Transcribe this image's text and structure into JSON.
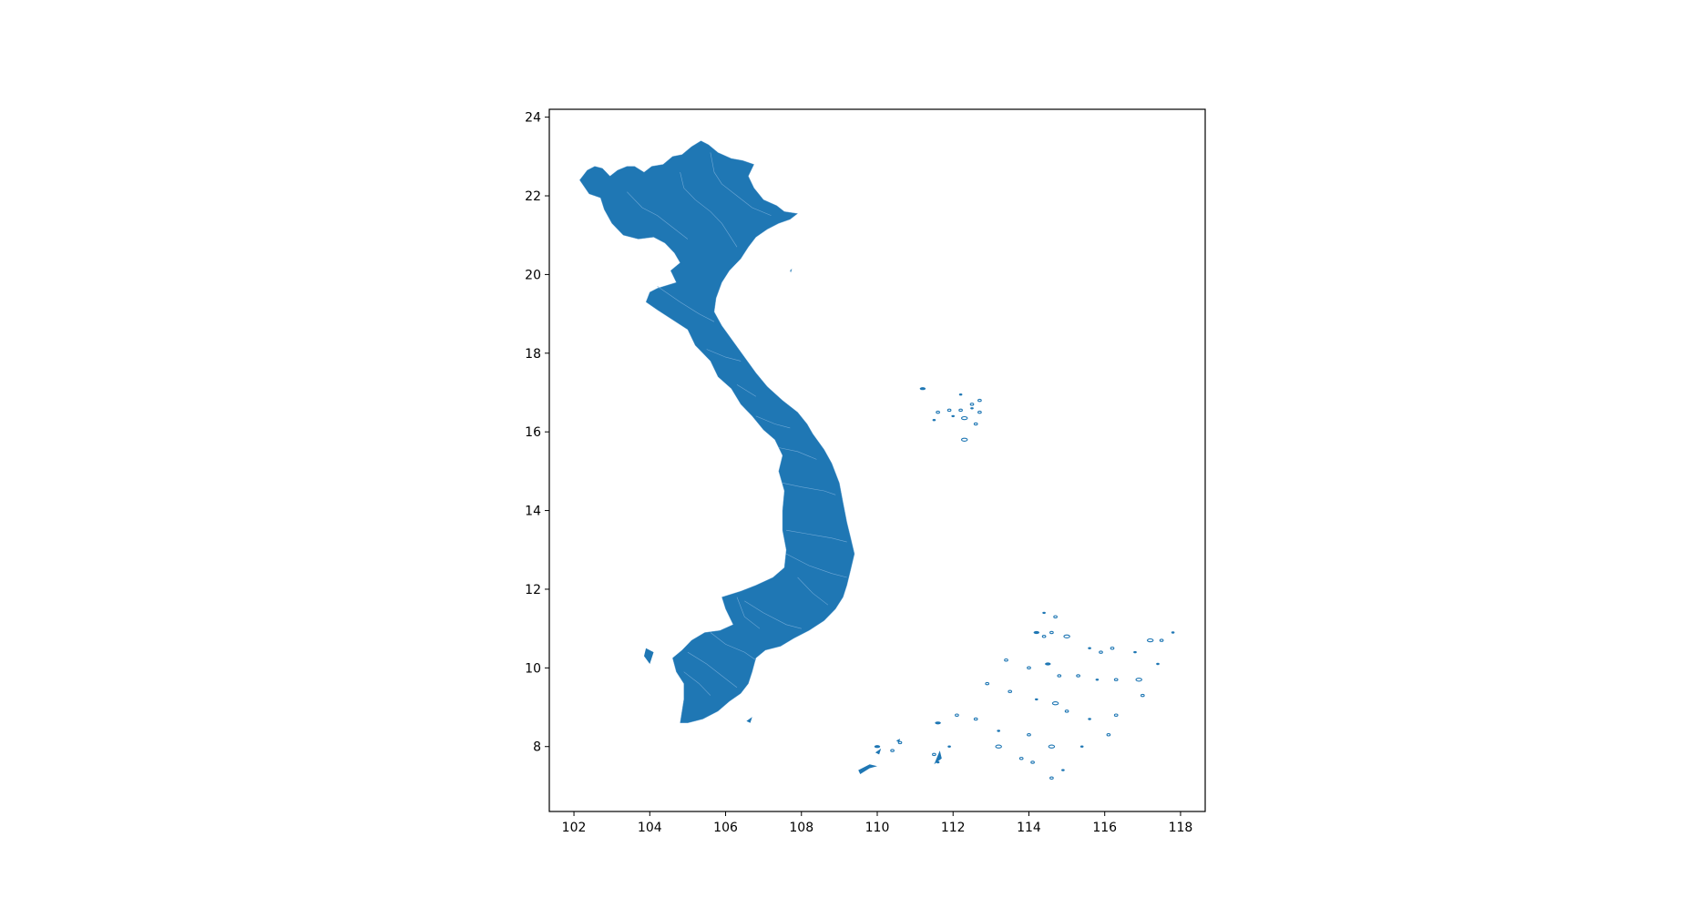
{
  "chart_data": {
    "type": "map",
    "title": "",
    "xlabel": "",
    "ylabel": "",
    "xlim": [
      101.35,
      118.65
    ],
    "ylim": [
      6.35,
      24.2
    ],
    "x_ticks": [
      102,
      104,
      106,
      108,
      110,
      112,
      114,
      116,
      118
    ],
    "y_ticks": [
      8,
      10,
      12,
      14,
      16,
      18,
      20,
      22,
      24
    ],
    "grid": false,
    "legend": "none",
    "colors": {
      "fill": "#1f77b4",
      "boundary": "#6fa8d6",
      "axes": "#000000",
      "background": "#ffffff"
    },
    "features": [
      {
        "name": "mainland",
        "kind": "region",
        "coords": [
          [
            102.15,
            22.4
          ],
          [
            102.35,
            22.65
          ],
          [
            102.55,
            22.75
          ],
          [
            102.75,
            22.7
          ],
          [
            102.95,
            22.5
          ],
          [
            103.15,
            22.65
          ],
          [
            103.4,
            22.75
          ],
          [
            103.6,
            22.75
          ],
          [
            103.85,
            22.6
          ],
          [
            104.05,
            22.75
          ],
          [
            104.35,
            22.8
          ],
          [
            104.6,
            23.0
          ],
          [
            104.85,
            23.05
          ],
          [
            105.1,
            23.25
          ],
          [
            105.35,
            23.4
          ],
          [
            105.55,
            23.3
          ],
          [
            105.8,
            23.1
          ],
          [
            106.15,
            22.95
          ],
          [
            106.45,
            22.9
          ],
          [
            106.75,
            22.8
          ],
          [
            106.6,
            22.5
          ],
          [
            106.75,
            22.2
          ],
          [
            107.0,
            21.9
          ],
          [
            107.35,
            21.75
          ],
          [
            107.55,
            21.6
          ],
          [
            107.9,
            21.55
          ],
          [
            107.7,
            21.4
          ],
          [
            107.4,
            21.3
          ],
          [
            107.1,
            21.15
          ],
          [
            106.8,
            20.95
          ],
          [
            106.6,
            20.7
          ],
          [
            106.4,
            20.4
          ],
          [
            106.1,
            20.1
          ],
          [
            105.9,
            19.8
          ],
          [
            105.75,
            19.4
          ],
          [
            105.7,
            19.05
          ],
          [
            105.9,
            18.7
          ],
          [
            106.2,
            18.3
          ],
          [
            106.5,
            17.9
          ],
          [
            106.8,
            17.5
          ],
          [
            107.1,
            17.15
          ],
          [
            107.5,
            16.8
          ],
          [
            107.9,
            16.5
          ],
          [
            108.15,
            16.2
          ],
          [
            108.3,
            15.95
          ],
          [
            108.6,
            15.55
          ],
          [
            108.8,
            15.2
          ],
          [
            109.0,
            14.7
          ],
          [
            109.1,
            14.2
          ],
          [
            109.2,
            13.7
          ],
          [
            109.3,
            13.3
          ],
          [
            109.4,
            12.9
          ],
          [
            109.3,
            12.5
          ],
          [
            109.2,
            12.1
          ],
          [
            109.1,
            11.8
          ],
          [
            108.9,
            11.5
          ],
          [
            108.6,
            11.2
          ],
          [
            108.2,
            10.95
          ],
          [
            107.8,
            10.75
          ],
          [
            107.45,
            10.55
          ],
          [
            107.05,
            10.45
          ],
          [
            106.8,
            10.25
          ],
          [
            106.7,
            9.9
          ],
          [
            106.6,
            9.6
          ],
          [
            106.4,
            9.35
          ],
          [
            106.1,
            9.15
          ],
          [
            105.8,
            8.9
          ],
          [
            105.4,
            8.7
          ],
          [
            105.0,
            8.6
          ],
          [
            104.8,
            8.6
          ],
          [
            104.9,
            9.2
          ],
          [
            104.9,
            9.6
          ],
          [
            104.7,
            9.9
          ],
          [
            104.6,
            10.25
          ],
          [
            104.85,
            10.45
          ],
          [
            105.1,
            10.7
          ],
          [
            105.45,
            10.9
          ],
          [
            105.85,
            10.95
          ],
          [
            106.2,
            11.1
          ],
          [
            106.0,
            11.5
          ],
          [
            105.9,
            11.8
          ],
          [
            106.4,
            11.95
          ],
          [
            106.8,
            12.1
          ],
          [
            107.25,
            12.3
          ],
          [
            107.55,
            12.55
          ],
          [
            107.6,
            13.0
          ],
          [
            107.5,
            13.5
          ],
          [
            107.5,
            14.0
          ],
          [
            107.55,
            14.5
          ],
          [
            107.4,
            15.0
          ],
          [
            107.5,
            15.4
          ],
          [
            107.3,
            15.8
          ],
          [
            107.0,
            16.05
          ],
          [
            106.7,
            16.4
          ],
          [
            106.4,
            16.7
          ],
          [
            106.15,
            17.1
          ],
          [
            105.8,
            17.4
          ],
          [
            105.6,
            17.8
          ],
          [
            105.2,
            18.2
          ],
          [
            105.0,
            18.6
          ],
          [
            104.6,
            18.85
          ],
          [
            104.2,
            19.1
          ],
          [
            103.9,
            19.3
          ],
          [
            104.0,
            19.55
          ],
          [
            104.2,
            19.65
          ],
          [
            104.7,
            19.8
          ],
          [
            104.55,
            20.1
          ],
          [
            104.8,
            20.3
          ],
          [
            104.65,
            20.55
          ],
          [
            104.4,
            20.8
          ],
          [
            104.1,
            20.95
          ],
          [
            103.7,
            20.9
          ],
          [
            103.3,
            21.0
          ],
          [
            103.0,
            21.3
          ],
          [
            102.8,
            21.65
          ],
          [
            102.7,
            21.95
          ],
          [
            102.4,
            22.05
          ],
          [
            102.15,
            22.4
          ]
        ]
      },
      {
        "name": "phu-quoc",
        "kind": "island",
        "coords": [
          [
            103.9,
            10.5
          ],
          [
            104.1,
            10.4
          ],
          [
            104.0,
            10.1
          ],
          [
            103.85,
            10.3
          ]
        ]
      },
      {
        "name": "con-dao",
        "kind": "island",
        "coords": [
          [
            106.55,
            8.65
          ],
          [
            106.7,
            8.75
          ],
          [
            106.65,
            8.6
          ]
        ]
      },
      {
        "name": "bach-long-vi",
        "kind": "island",
        "coords": [
          [
            107.7,
            20.1
          ],
          [
            107.75,
            20.15
          ],
          [
            107.72,
            20.05
          ]
        ]
      },
      {
        "name": "paracel-islets",
        "kind": "islet",
        "points": [
          [
            111.2,
            17.1
          ],
          [
            111.6,
            16.5
          ],
          [
            111.9,
            16.55
          ],
          [
            112.0,
            16.4
          ],
          [
            112.2,
            16.55
          ],
          [
            112.3,
            16.35
          ],
          [
            112.5,
            16.6
          ],
          [
            112.6,
            16.2
          ],
          [
            112.7,
            16.5
          ],
          [
            112.2,
            16.95
          ],
          [
            112.3,
            15.8
          ],
          [
            112.5,
            16.7
          ],
          [
            111.5,
            16.3
          ],
          [
            112.7,
            16.8
          ]
        ]
      },
      {
        "name": "spratly-islets",
        "kind": "islet",
        "points": [
          [
            114.2,
            10.9
          ],
          [
            114.4,
            10.8
          ],
          [
            114.6,
            10.9
          ],
          [
            114.4,
            11.4
          ],
          [
            114.7,
            11.3
          ],
          [
            115.0,
            10.8
          ],
          [
            115.6,
            10.5
          ],
          [
            115.9,
            10.4
          ],
          [
            116.2,
            10.5
          ],
          [
            116.8,
            10.4
          ],
          [
            117.2,
            10.7
          ],
          [
            117.5,
            10.7
          ],
          [
            117.8,
            10.9
          ],
          [
            113.4,
            10.2
          ],
          [
            114.0,
            10.0
          ],
          [
            114.5,
            10.1
          ],
          [
            114.8,
            9.8
          ],
          [
            115.3,
            9.8
          ],
          [
            115.8,
            9.7
          ],
          [
            116.3,
            9.7
          ],
          [
            116.9,
            9.7
          ],
          [
            117.4,
            10.1
          ],
          [
            112.9,
            9.6
          ],
          [
            113.5,
            9.4
          ],
          [
            114.2,
            9.2
          ],
          [
            114.7,
            9.1
          ],
          [
            115.0,
            8.9
          ],
          [
            115.6,
            8.7
          ],
          [
            116.3,
            8.8
          ],
          [
            117.0,
            9.3
          ],
          [
            111.6,
            8.6
          ],
          [
            112.1,
            8.8
          ],
          [
            112.6,
            8.7
          ],
          [
            113.2,
            8.4
          ],
          [
            114.0,
            8.3
          ],
          [
            114.6,
            8.0
          ],
          [
            115.4,
            8.0
          ],
          [
            116.1,
            8.3
          ],
          [
            111.5,
            7.8
          ],
          [
            111.9,
            8.0
          ],
          [
            113.2,
            8.0
          ],
          [
            114.1,
            7.6
          ],
          [
            114.9,
            7.4
          ],
          [
            114.6,
            7.2
          ],
          [
            113.8,
            7.7
          ],
          [
            110.0,
            8.0
          ],
          [
            110.4,
            7.9
          ],
          [
            110.6,
            8.1
          ],
          [
            111.6,
            7.6
          ]
        ]
      },
      {
        "name": "southern-reefs",
        "kind": "island",
        "coords": [
          [
            109.5,
            7.4
          ],
          [
            109.8,
            7.55
          ],
          [
            110.0,
            7.5
          ],
          [
            109.8,
            7.45
          ],
          [
            109.55,
            7.3
          ]
        ]
      },
      {
        "name": "southern-reef-2",
        "kind": "island",
        "coords": [
          [
            109.95,
            7.85
          ],
          [
            110.1,
            7.95
          ],
          [
            110.05,
            7.8
          ]
        ]
      },
      {
        "name": "southern-reef-3",
        "kind": "island",
        "coords": [
          [
            110.5,
            8.15
          ],
          [
            110.6,
            8.2
          ],
          [
            110.58,
            8.1
          ]
        ]
      },
      {
        "name": "southern-reef-4",
        "kind": "island",
        "coords": [
          [
            111.5,
            7.55
          ],
          [
            111.65,
            7.9
          ],
          [
            111.7,
            7.7
          ]
        ]
      }
    ],
    "boundaries": [
      [
        [
          103.4,
          22.1
        ],
        [
          103.8,
          21.7
        ],
        [
          104.2,
          21.5
        ],
        [
          104.6,
          21.2
        ],
        [
          105.0,
          20.9
        ]
      ],
      [
        [
          104.8,
          22.6
        ],
        [
          104.9,
          22.2
        ],
        [
          105.2,
          21.9
        ],
        [
          105.6,
          21.6
        ],
        [
          105.9,
          21.3
        ],
        [
          106.1,
          21.0
        ],
        [
          106.3,
          20.7
        ]
      ],
      [
        [
          105.6,
          23.1
        ],
        [
          105.7,
          22.6
        ],
        [
          105.9,
          22.3
        ],
        [
          106.3,
          22.0
        ],
        [
          106.7,
          21.7
        ],
        [
          107.2,
          21.5
        ]
      ],
      [
        [
          104.2,
          19.7
        ],
        [
          104.8,
          19.3
        ],
        [
          105.3,
          19.0
        ],
        [
          105.7,
          18.8
        ]
      ],
      [
        [
          105.5,
          18.1
        ],
        [
          106.0,
          17.9
        ],
        [
          106.4,
          17.8
        ]
      ],
      [
        [
          106.3,
          17.2
        ],
        [
          106.8,
          16.9
        ]
      ],
      [
        [
          106.8,
          16.4
        ],
        [
          107.3,
          16.2
        ],
        [
          107.7,
          16.1
        ]
      ],
      [
        [
          107.4,
          15.6
        ],
        [
          107.9,
          15.5
        ],
        [
          108.4,
          15.3
        ]
      ],
      [
        [
          107.5,
          14.7
        ],
        [
          108.0,
          14.6
        ],
        [
          108.6,
          14.5
        ],
        [
          108.9,
          14.4
        ]
      ],
      [
        [
          107.6,
          13.5
        ],
        [
          108.2,
          13.4
        ],
        [
          108.8,
          13.3
        ],
        [
          109.2,
          13.2
        ]
      ],
      [
        [
          107.6,
          12.9
        ],
        [
          108.2,
          12.6
        ],
        [
          108.8,
          12.4
        ],
        [
          109.2,
          12.3
        ]
      ],
      [
        [
          107.9,
          12.3
        ],
        [
          108.3,
          11.9
        ],
        [
          108.7,
          11.6
        ]
      ],
      [
        [
          106.5,
          11.7
        ],
        [
          107.0,
          11.4
        ],
        [
          107.6,
          11.1
        ],
        [
          108.0,
          11.0
        ]
      ],
      [
        [
          105.6,
          10.9
        ],
        [
          106.0,
          10.6
        ],
        [
          106.5,
          10.4
        ],
        [
          106.8,
          10.2
        ]
      ],
      [
        [
          105.0,
          10.4
        ],
        [
          105.5,
          10.1
        ],
        [
          105.9,
          9.8
        ],
        [
          106.3,
          9.5
        ]
      ],
      [
        [
          104.9,
          9.9
        ],
        [
          105.3,
          9.6
        ],
        [
          105.6,
          9.3
        ]
      ],
      [
        [
          106.3,
          11.8
        ],
        [
          106.5,
          11.3
        ],
        [
          106.9,
          11.0
        ]
      ]
    ]
  }
}
